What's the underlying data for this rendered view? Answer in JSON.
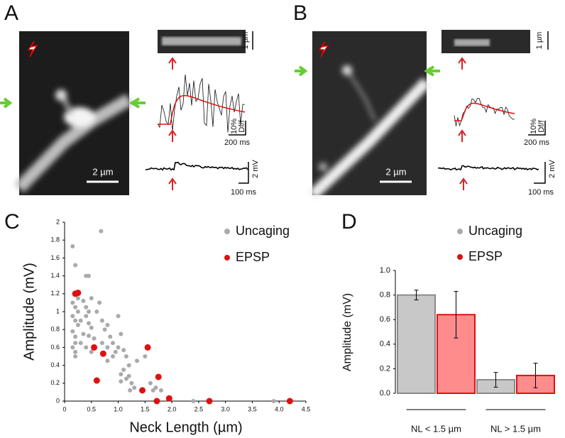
{
  "panel_a": {
    "label": "A",
    "line_scale": "1 µm",
    "trace_scale": [
      "10%",
      "Df/f"
    ],
    "trace_time": "200 ms",
    "epsp_scale": "2 mV",
    "epsp_time": "100 ms",
    "image_scale": "2 µm"
  },
  "panel_b": {
    "label": "B",
    "line_scale": "1 µm",
    "trace_scale": [
      "10%",
      "Df/f"
    ],
    "trace_time": "200 ms",
    "epsp_scale": "2 mV",
    "epsp_time": "100 ms",
    "image_scale": "2 µm"
  },
  "chart_data": [
    {
      "type": "scatter",
      "panel": "C",
      "x_label": "Neck Length (µm)",
      "y_label": "Amplitude (mV)",
      "xlim": [
        0,
        4.5
      ],
      "ylim": [
        0,
        2
      ],
      "xticks": [
        0,
        0.5,
        {
          "value": 1,
          "label": "1.0"
        },
        1.5,
        {
          "value": 2,
          "label": "2.0"
        },
        2.5,
        {
          "value": 3,
          "label": "3.0"
        },
        3.5,
        {
          "value": 4,
          "label": "4.0"
        },
        4.5
      ],
      "yticks": [
        0,
        0.2,
        0.4,
        0.6,
        0.8,
        1,
        1.2,
        1.4,
        1.6,
        1.8,
        2
      ],
      "legend": "upper right",
      "series": [
        {
          "name": "Uncaging",
          "color": "#aaaaaa",
          "x": [
            0.15,
            0.2,
            0.68,
            0.4,
            0.45,
            0.2,
            0.25,
            0.15,
            0.2,
            0.25,
            0.15,
            0.2,
            0.25,
            0.15,
            0.2,
            0.2,
            0.15,
            0.2,
            0.2,
            0.35,
            0.4,
            0.45,
            0.5,
            0.4,
            0.3,
            0.45,
            0.5,
            0.35,
            0.45,
            0.55,
            0.3,
            0.4,
            0.5,
            0.6,
            0.65,
            0.7,
            0.75,
            0.8,
            0.85,
            0.7,
            0.8,
            0.9,
            0.95,
            1.0,
            0.9,
            0.8,
            1.0,
            1.1,
            1.05,
            1.15,
            1.2,
            1.1,
            1.2,
            1.05,
            1.15,
            1.25,
            1.3,
            1.35,
            1.5,
            1.6,
            1.7,
            1.8,
            1.65,
            2.4,
            3.9,
            1.22,
            1.05
          ],
          "y": [
            1.73,
            1.52,
            1.9,
            1.4,
            1.4,
            1.2,
            1.15,
            1.1,
            1.05,
            1.0,
            0.95,
            0.9,
            0.85,
            0.78,
            0.72,
            0.65,
            0.6,
            0.55,
            0.5,
            1.12,
            1.05,
            1.0,
            1.15,
            0.95,
            0.9,
            0.87,
            0.82,
            0.75,
            0.73,
            0.7,
            0.65,
            0.6,
            0.55,
            1.0,
            1.1,
            0.9,
            0.8,
            0.85,
            0.72,
            0.65,
            0.6,
            0.65,
            0.55,
            0.95,
            0.5,
            0.45,
            0.6,
            0.57,
            0.75,
            0.5,
            0.4,
            0.35,
            0.28,
            0.3,
            0.25,
            0.2,
            0.15,
            0.45,
            0.5,
            0.2,
            0.15,
            0.12,
            0.12,
            0.0,
            0.0,
            0.12,
            0.22
          ]
        },
        {
          "name": "EPSP",
          "color": "#e01010",
          "x": [
            0.2,
            0.25,
            0.55,
            0.6,
            0.72,
            1.45,
            1.55,
            1.75,
            1.72,
            1.95,
            2.7,
            4.2
          ],
          "y": [
            1.2,
            1.21,
            0.6,
            0.23,
            0.53,
            0.12,
            0.6,
            0.27,
            0.0,
            0.03,
            0.0,
            0.0
          ]
        }
      ]
    },
    {
      "type": "bar",
      "panel": "D",
      "y_label": "Amplitude (mV)",
      "categories": [
        "NL < 1.5 µm",
        "NL > 1.5 µm"
      ],
      "ylim": [
        0,
        1.0
      ],
      "yticks": [
        {
          "value": 0,
          "label": "0.0"
        },
        0.2,
        0.4,
        0.6,
        0.8,
        {
          "value": 1,
          "label": "1.0"
        }
      ],
      "legend": "upper right",
      "series": [
        {
          "name": "Uncaging",
          "color": "#aaaaaa",
          "fill": "#c8c8c8",
          "edge_color": "#8a8a8a",
          "values": [
            0.8,
            0.11
          ],
          "errors": [
            0.04,
            0.06
          ]
        },
        {
          "name": "EPSP",
          "color": "#e01010",
          "fill": "#ff8c8c",
          "edge_color": "#e01010",
          "values": [
            0.64,
            0.145
          ],
          "errors": [
            0.19,
            0.1
          ]
        }
      ]
    }
  ]
}
